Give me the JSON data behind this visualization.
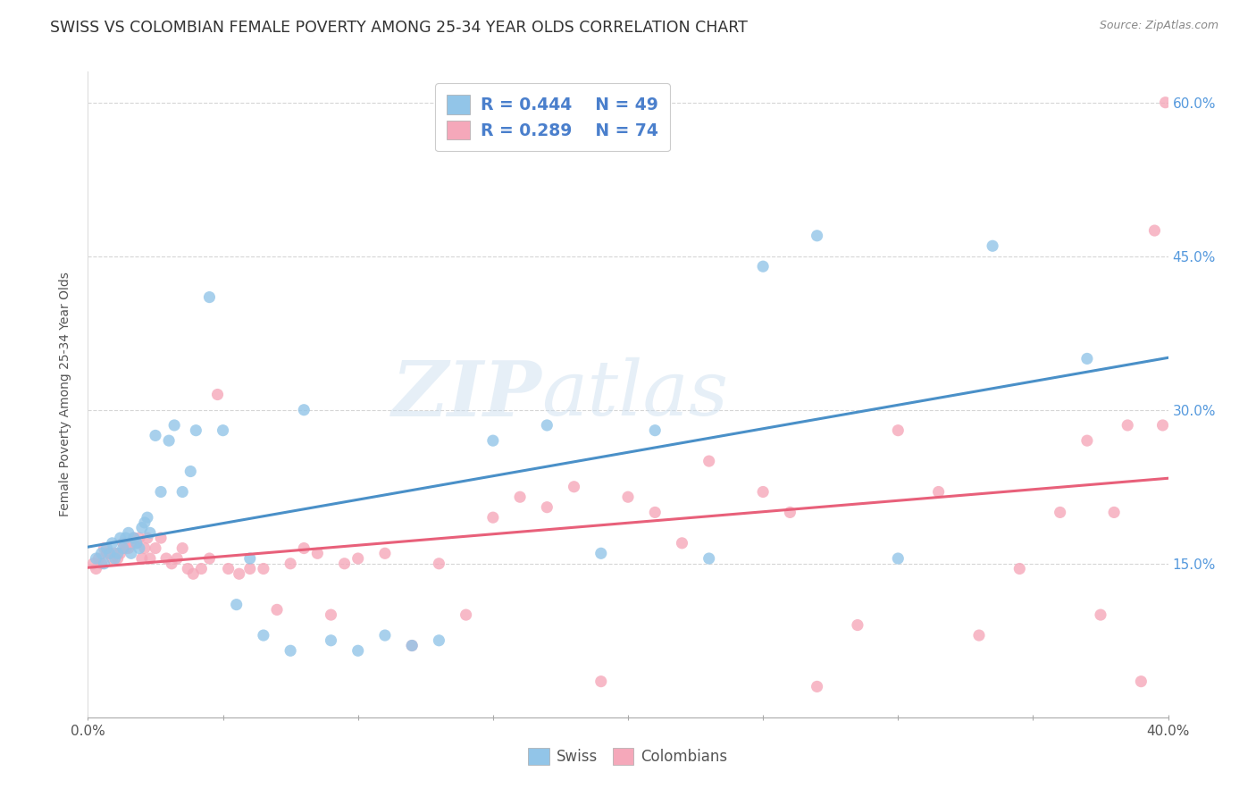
{
  "title": "SWISS VS COLOMBIAN FEMALE POVERTY AMONG 25-34 YEAR OLDS CORRELATION CHART",
  "source": "Source: ZipAtlas.com",
  "ylabel": "Female Poverty Among 25-34 Year Olds",
  "xlim": [
    0.0,
    0.4
  ],
  "ylim": [
    0.0,
    0.63
  ],
  "xticks": [
    0.0,
    0.05,
    0.1,
    0.15,
    0.2,
    0.25,
    0.3,
    0.35,
    0.4
  ],
  "xticklabels_show": {
    "0.0": "0.0%",
    "0.40": "40.0%"
  },
  "yticks": [
    0.15,
    0.3,
    0.45,
    0.6
  ],
  "yticklabels": [
    "15.0%",
    "30.0%",
    "45.0%",
    "60.0%"
  ],
  "swiss_R": 0.444,
  "swiss_N": 49,
  "colombian_R": 0.289,
  "colombian_N": 74,
  "swiss_color": "#92C5E8",
  "colombian_color": "#F5A8BA",
  "swiss_line_color": "#4A90C8",
  "colombian_line_color": "#E8607A",
  "background_color": "#FFFFFF",
  "grid_color": "#CCCCCC",
  "title_fontsize": 12.5,
  "axis_label_fontsize": 10,
  "tick_fontsize": 11,
  "watermark_zip": "ZIP",
  "watermark_atlas": "atlas",
  "legend_color": "#4A7FCC",
  "swiss_x": [
    0.003,
    0.005,
    0.006,
    0.007,
    0.008,
    0.009,
    0.01,
    0.011,
    0.012,
    0.013,
    0.014,
    0.015,
    0.016,
    0.017,
    0.018,
    0.019,
    0.02,
    0.021,
    0.022,
    0.023,
    0.025,
    0.027,
    0.03,
    0.032,
    0.035,
    0.038,
    0.04,
    0.045,
    0.05,
    0.055,
    0.06,
    0.065,
    0.075,
    0.08,
    0.09,
    0.1,
    0.11,
    0.12,
    0.13,
    0.15,
    0.17,
    0.19,
    0.21,
    0.23,
    0.25,
    0.27,
    0.3,
    0.335,
    0.37
  ],
  "swiss_y": [
    0.155,
    0.16,
    0.15,
    0.165,
    0.16,
    0.17,
    0.155,
    0.16,
    0.175,
    0.165,
    0.175,
    0.18,
    0.16,
    0.175,
    0.17,
    0.165,
    0.185,
    0.19,
    0.195,
    0.18,
    0.275,
    0.22,
    0.27,
    0.285,
    0.22,
    0.24,
    0.28,
    0.41,
    0.28,
    0.11,
    0.155,
    0.08,
    0.065,
    0.3,
    0.075,
    0.065,
    0.08,
    0.07,
    0.075,
    0.27,
    0.285,
    0.16,
    0.28,
    0.155,
    0.44,
    0.47,
    0.155,
    0.46,
    0.35
  ],
  "colombian_x": [
    0.002,
    0.003,
    0.004,
    0.005,
    0.006,
    0.007,
    0.008,
    0.009,
    0.01,
    0.011,
    0.012,
    0.013,
    0.014,
    0.015,
    0.016,
    0.017,
    0.018,
    0.019,
    0.02,
    0.021,
    0.022,
    0.023,
    0.025,
    0.027,
    0.029,
    0.031,
    0.033,
    0.035,
    0.037,
    0.039,
    0.042,
    0.045,
    0.048,
    0.052,
    0.056,
    0.06,
    0.065,
    0.07,
    0.075,
    0.08,
    0.085,
    0.09,
    0.095,
    0.1,
    0.11,
    0.12,
    0.13,
    0.14,
    0.15,
    0.16,
    0.17,
    0.18,
    0.19,
    0.2,
    0.21,
    0.22,
    0.23,
    0.25,
    0.26,
    0.27,
    0.285,
    0.3,
    0.315,
    0.33,
    0.345,
    0.36,
    0.37,
    0.375,
    0.38,
    0.385,
    0.39,
    0.395,
    0.398,
    0.399
  ],
  "colombian_y": [
    0.15,
    0.145,
    0.155,
    0.15,
    0.165,
    0.16,
    0.16,
    0.155,
    0.16,
    0.155,
    0.16,
    0.17,
    0.165,
    0.165,
    0.17,
    0.175,
    0.17,
    0.175,
    0.155,
    0.165,
    0.175,
    0.155,
    0.165,
    0.175,
    0.155,
    0.15,
    0.155,
    0.165,
    0.145,
    0.14,
    0.145,
    0.155,
    0.315,
    0.145,
    0.14,
    0.145,
    0.145,
    0.105,
    0.15,
    0.165,
    0.16,
    0.1,
    0.15,
    0.155,
    0.16,
    0.07,
    0.15,
    0.1,
    0.195,
    0.215,
    0.205,
    0.225,
    0.035,
    0.215,
    0.2,
    0.17,
    0.25,
    0.22,
    0.2,
    0.03,
    0.09,
    0.28,
    0.22,
    0.08,
    0.145,
    0.2,
    0.27,
    0.1,
    0.2,
    0.285,
    0.035,
    0.475,
    0.285,
    0.6
  ]
}
